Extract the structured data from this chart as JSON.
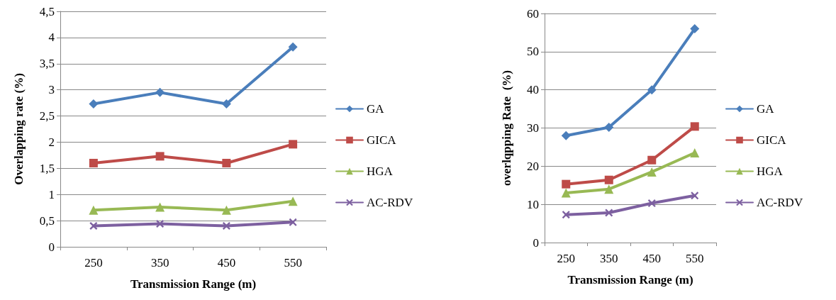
{
  "chart_data": [
    {
      "type": "line",
      "xlabel": "Transmission Range (m)",
      "ylabel": "Overlapping rate (%)",
      "categories": [
        "250",
        "350",
        "450",
        "550"
      ],
      "series": [
        {
          "name": "GA",
          "color": "#4a7ebb",
          "marker": "diamond",
          "values": [
            2.73,
            2.95,
            2.73,
            3.82
          ]
        },
        {
          "name": "GICA",
          "color": "#be4b48",
          "marker": "square",
          "values": [
            1.6,
            1.73,
            1.6,
            1.96
          ]
        },
        {
          "name": "HGA",
          "color": "#98b954",
          "marker": "triangle",
          "values": [
            0.7,
            0.76,
            0.7,
            0.87
          ]
        },
        {
          "name": "AC-RDV",
          "color": "#7d60a0",
          "marker": "cross",
          "values": [
            0.4,
            0.44,
            0.4,
            0.47
          ]
        }
      ],
      "ylim": [
        0,
        4.5
      ],
      "yticks": [
        0,
        {
          "value": 0.5,
          "label": "0,5"
        },
        1,
        {
          "value": 1.5,
          "label": "1,5"
        },
        2,
        {
          "value": 2.5,
          "label": "2,5"
        },
        3,
        {
          "value": 3.5,
          "label": "3,5"
        },
        4,
        {
          "value": 4.5,
          "label": "4,5"
        }
      ],
      "grid": "y",
      "legend": "right"
    },
    {
      "type": "line",
      "xlabel": "Transmission Range (m)",
      "ylabel": "overlqpping Rate  (%)",
      "categories": [
        "250",
        "350",
        "450",
        "550"
      ],
      "series": [
        {
          "name": "GA",
          "color": "#4a7ebb",
          "marker": "diamond",
          "values": [
            28,
            30.2,
            40,
            56
          ]
        },
        {
          "name": "GICA",
          "color": "#be4b48",
          "marker": "square",
          "values": [
            15.3,
            16.4,
            21.6,
            30.4
          ]
        },
        {
          "name": "HGA",
          "color": "#98b954",
          "marker": "triangle",
          "values": [
            13,
            14,
            18.5,
            23.5
          ]
        },
        {
          "name": "AC-RDV",
          "color": "#7d60a0",
          "marker": "cross",
          "values": [
            7.3,
            7.8,
            10.3,
            12.3
          ]
        }
      ],
      "ylim": [
        0,
        60
      ],
      "yticks": [
        0,
        10,
        20,
        30,
        40,
        50,
        60
      ],
      "grid": "y",
      "legend": "right"
    }
  ]
}
